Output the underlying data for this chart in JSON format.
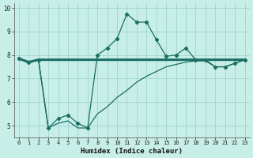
{
  "xlabel": "Humidex (Indice chaleur)",
  "background_color": "#c8eee8",
  "grid_color": "#a0d4cc",
  "line_color": "#1a6e62",
  "xlim": [
    -0.5,
    23.5
  ],
  "ylim": [
    4.5,
    10.2
  ],
  "xticks": [
    0,
    1,
    2,
    3,
    4,
    5,
    6,
    7,
    8,
    9,
    10,
    11,
    12,
    13,
    14,
    15,
    16,
    17,
    18,
    19,
    20,
    21,
    22,
    23
  ],
  "yticks": [
    5,
    6,
    7,
    8,
    9,
    10
  ],
  "series1_x": [
    0,
    1,
    2,
    3,
    4,
    5,
    6,
    7,
    8,
    9,
    10,
    11,
    12,
    13,
    14,
    15,
    16,
    17,
    18,
    19,
    20,
    21,
    22,
    23
  ],
  "series1_y": [
    7.85,
    7.7,
    7.8,
    7.8,
    7.8,
    7.8,
    7.8,
    7.8,
    7.8,
    7.8,
    7.8,
    7.8,
    7.8,
    7.8,
    7.8,
    7.8,
    7.8,
    7.8,
    7.8,
    7.8,
    7.8,
    7.8,
    7.8,
    7.8
  ],
  "series2_x": [
    0,
    1,
    2,
    3,
    4,
    5,
    6,
    7,
    8,
    9,
    10,
    11,
    12,
    13,
    14,
    15,
    16,
    17,
    18,
    19,
    20,
    21,
    22,
    23
  ],
  "series2_y": [
    7.85,
    7.7,
    7.8,
    4.9,
    5.3,
    5.45,
    5.1,
    4.9,
    8.0,
    8.3,
    8.7,
    9.75,
    9.4,
    9.4,
    8.65,
    7.95,
    8.0,
    8.3,
    7.8,
    7.8,
    7.5,
    7.5,
    7.65,
    7.8
  ],
  "series3_x": [
    0,
    1,
    2,
    3,
    4,
    5,
    6,
    7,
    8,
    9,
    10,
    11,
    12,
    13,
    14,
    15,
    16,
    17,
    18,
    19,
    20,
    21,
    22,
    23
  ],
  "series3_y": [
    7.85,
    7.7,
    7.8,
    4.9,
    5.1,
    5.2,
    4.9,
    4.9,
    5.5,
    5.8,
    6.2,
    6.5,
    6.85,
    7.1,
    7.3,
    7.5,
    7.6,
    7.7,
    7.75,
    7.75,
    7.5,
    7.5,
    7.65,
    7.8
  ]
}
